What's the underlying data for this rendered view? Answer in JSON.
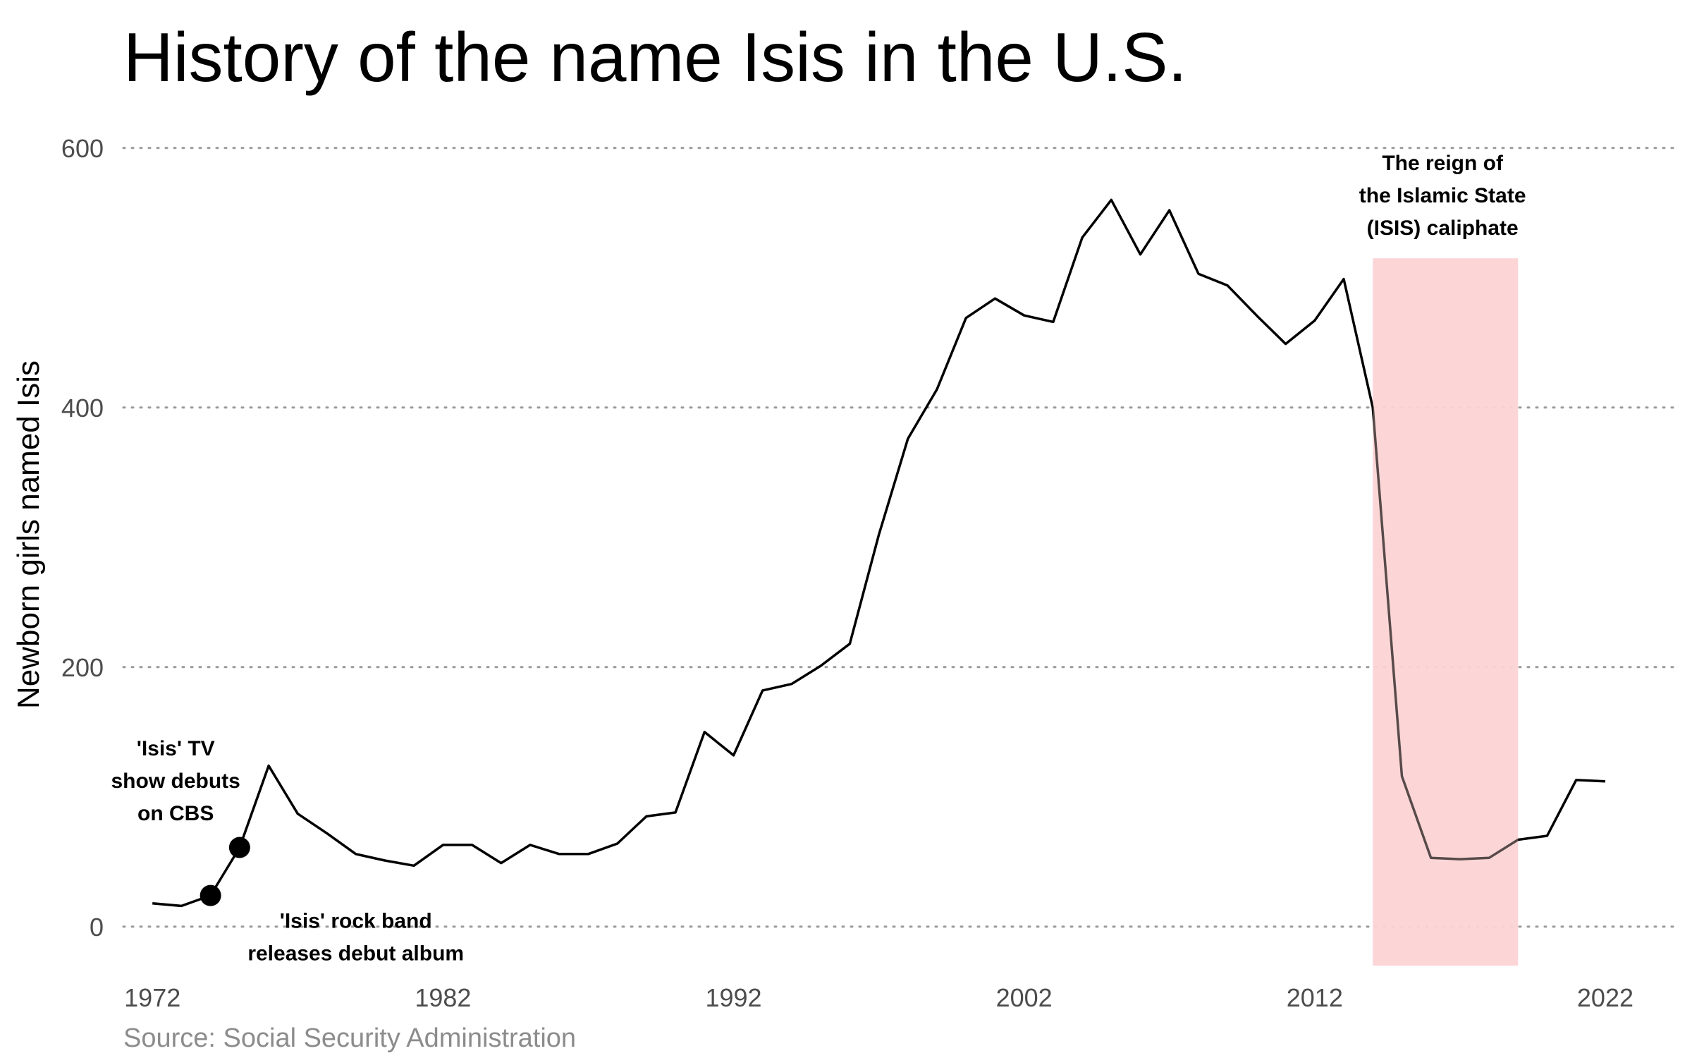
{
  "chart_data": {
    "type": "line",
    "title": "History of the name Isis in the U.S.",
    "ylabel": "Newborn girls named Isis",
    "xlabel": "",
    "source": "Source: Social Security Administration",
    "xlim": [
      1971,
      2024.5
    ],
    "ylim": [
      -30,
      620
    ],
    "x_ticks": [
      1972,
      1982,
      1992,
      2002,
      2012,
      2022
    ],
    "y_ticks": [
      0,
      200,
      400,
      600
    ],
    "grid": "horizontal dotted",
    "colors": {
      "line": "#000000",
      "highlight": "#fcd4d4",
      "grid": "#9a9a9a"
    },
    "x": [
      1972,
      1973,
      1974,
      1975,
      1976,
      1977,
      1978,
      1979,
      1980,
      1981,
      1982,
      1983,
      1984,
      1985,
      1986,
      1987,
      1988,
      1989,
      1990,
      1991,
      1992,
      1993,
      1994,
      1995,
      1996,
      1997,
      1998,
      1999,
      2000,
      2001,
      2002,
      2003,
      2004,
      2005,
      2006,
      2007,
      2008,
      2009,
      2010,
      2011,
      2012,
      2013,
      2014,
      2015,
      2016,
      2017,
      2018,
      2019,
      2020,
      2021,
      2022
    ],
    "values": [
      18,
      16,
      24,
      61,
      124,
      87,
      72,
      56,
      51,
      47,
      63,
      63,
      49,
      63,
      56,
      56,
      64,
      85,
      88,
      150,
      132,
      182,
      187,
      201,
      218,
      302,
      376,
      414,
      469,
      484,
      471,
      466,
      531,
      560,
      518,
      552,
      503,
      494,
      471,
      449,
      467,
      499,
      400,
      116,
      53,
      52,
      53,
      67,
      70,
      113,
      112
    ],
    "highlight_span": {
      "x": [
        2014,
        2019
      ],
      "y": [
        -30,
        515
      ]
    },
    "markers": [
      {
        "x": 1974,
        "y": 24,
        "label": [
          "'Isis' rock band",
          "releases debut album"
        ],
        "label_x": 1979,
        "label_y": -1
      },
      {
        "x": 1975,
        "y": 61,
        "label": [
          "'Isis' TV",
          "show debuts",
          "on CBS"
        ],
        "label_x": 1972.8,
        "label_y": 132
      }
    ],
    "highlight_label": [
      "The reign of",
      "the Islamic State",
      "(ISIS) caliphate"
    ],
    "highlight_label_x": 2016.4,
    "highlight_label_y": 583
  }
}
